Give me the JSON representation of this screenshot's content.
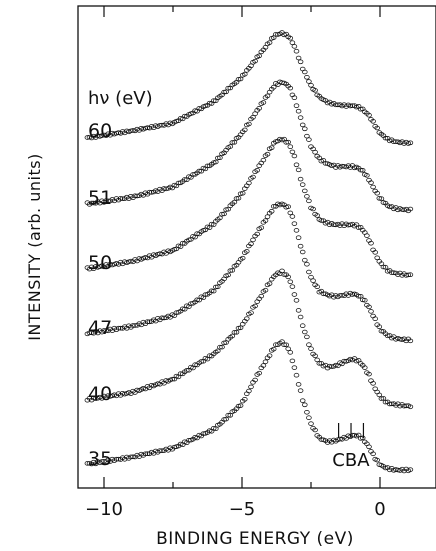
{
  "chart_data": {
    "type": "scatter",
    "title": "",
    "xlabel": "BINDING ENERGY (eV)",
    "ylabel": "INTENSITY (arb. units)",
    "xlim": [
      -11.5,
      1.5
    ],
    "x_ticks": [
      -10,
      -5,
      0
    ],
    "x_tick_labels": [
      "−10",
      "−5",
      "0"
    ],
    "y_ticks": "none (arbitrary units, spectra offset vertically)",
    "grid": false,
    "legend": "none; photon energies labelled at left of each curve",
    "hv_header": "hν (eV)",
    "markers": "open circles",
    "series": [
      {
        "name": "60",
        "label": "60",
        "x": [
          -10.5,
          -9,
          -7.5,
          -6,
          -5,
          -4.5,
          -4,
          -3.8,
          -3.55,
          -3.3,
          -3.1,
          -2.8,
          -2.5,
          -2.2,
          -1.9,
          -1.6,
          -1.3,
          -1.0,
          -0.8,
          -0.6,
          -0.4,
          -0.2,
          0.0,
          0.3,
          0.6,
          1.0
        ],
        "y": [
          0.05,
          0.11,
          0.18,
          0.38,
          0.6,
          0.76,
          0.92,
          0.98,
          1.0,
          0.97,
          0.88,
          0.68,
          0.52,
          0.42,
          0.37,
          0.35,
          0.34,
          0.34,
          0.33,
          0.3,
          0.25,
          0.17,
          0.09,
          0.03,
          0.01,
          0.0
        ]
      },
      {
        "name": "51",
        "label": "51",
        "x": [
          -10.5,
          -9,
          -7.5,
          -6,
          -5,
          -4.5,
          -4,
          -3.8,
          -3.55,
          -3.3,
          -3.1,
          -2.8,
          -2.5,
          -2.2,
          -1.9,
          -1.6,
          -1.3,
          -1.0,
          -0.8,
          -0.6,
          -0.4,
          -0.2,
          0.0,
          0.3,
          0.6,
          1.0
        ],
        "y": [
          0.05,
          0.1,
          0.18,
          0.37,
          0.6,
          0.76,
          0.92,
          0.98,
          1.0,
          0.97,
          0.87,
          0.67,
          0.5,
          0.4,
          0.36,
          0.34,
          0.34,
          0.34,
          0.33,
          0.3,
          0.24,
          0.16,
          0.09,
          0.03,
          0.01,
          0.0
        ]
      },
      {
        "name": "50",
        "label": "50",
        "x": [
          -10.5,
          -9,
          -7.5,
          -6,
          -5,
          -4.5,
          -4,
          -3.8,
          -3.55,
          -3.3,
          -3.1,
          -2.8,
          -2.5,
          -2.2,
          -1.9,
          -1.6,
          -1.3,
          -1.0,
          -0.8,
          -0.6,
          -0.4,
          -0.2,
          0.0,
          0.3,
          0.6,
          1.0
        ],
        "y": [
          0.05,
          0.1,
          0.18,
          0.38,
          0.6,
          0.76,
          0.92,
          0.98,
          1.0,
          0.97,
          0.87,
          0.66,
          0.5,
          0.41,
          0.38,
          0.37,
          0.37,
          0.37,
          0.36,
          0.33,
          0.26,
          0.17,
          0.09,
          0.03,
          0.01,
          0.0
        ]
      },
      {
        "name": "47",
        "label": "47",
        "x": [
          -10.5,
          -9,
          -7.5,
          -6,
          -5,
          -4.5,
          -4,
          -3.8,
          -3.55,
          -3.3,
          -3.1,
          -2.8,
          -2.5,
          -2.2,
          -1.9,
          -1.6,
          -1.3,
          -1.0,
          -0.8,
          -0.6,
          -0.4,
          -0.2,
          0.0,
          0.3,
          0.6,
          1.0
        ],
        "y": [
          0.05,
          0.1,
          0.18,
          0.37,
          0.6,
          0.77,
          0.93,
          0.99,
          1.0,
          0.97,
          0.86,
          0.64,
          0.46,
          0.36,
          0.33,
          0.32,
          0.33,
          0.34,
          0.33,
          0.3,
          0.24,
          0.16,
          0.08,
          0.03,
          0.01,
          0.0
        ]
      },
      {
        "name": "40",
        "label": "40",
        "x": [
          -10.5,
          -9,
          -7.5,
          -6,
          -5,
          -4.5,
          -4,
          -3.8,
          -3.55,
          -3.3,
          -3.1,
          -2.8,
          -2.5,
          -2.2,
          -1.9,
          -1.6,
          -1.3,
          -1.0,
          -0.8,
          -0.6,
          -0.4,
          -0.2,
          0.0,
          0.3,
          0.6,
          1.0
        ],
        "y": [
          0.05,
          0.1,
          0.2,
          0.39,
          0.6,
          0.76,
          0.92,
          0.98,
          1.0,
          0.96,
          0.84,
          0.6,
          0.42,
          0.32,
          0.29,
          0.3,
          0.33,
          0.35,
          0.34,
          0.3,
          0.23,
          0.14,
          0.07,
          0.02,
          0.01,
          0.0
        ]
      },
      {
        "name": "35",
        "label": "35",
        "x": [
          -10.5,
          -9,
          -7.5,
          -6,
          -5,
          -4.5,
          -4,
          -3.8,
          -3.55,
          -3.3,
          -3.1,
          -2.8,
          -2.5,
          -2.2,
          -1.9,
          -1.6,
          -1.3,
          -1.0,
          -0.8,
          -0.6,
          -0.4,
          -0.2,
          0.0,
          0.3,
          0.6,
          1.0
        ],
        "y": [
          0.05,
          0.1,
          0.17,
          0.32,
          0.52,
          0.72,
          0.9,
          0.97,
          1.0,
          0.95,
          0.8,
          0.55,
          0.36,
          0.25,
          0.22,
          0.23,
          0.25,
          0.27,
          0.27,
          0.24,
          0.18,
          0.1,
          0.04,
          0.01,
          0.0,
          0.0
        ]
      }
    ],
    "annotations": [
      {
        "text": "C",
        "x": -1.5
      },
      {
        "text": "B",
        "x": -1.05
      },
      {
        "text": "A",
        "x": -0.6
      }
    ]
  }
}
